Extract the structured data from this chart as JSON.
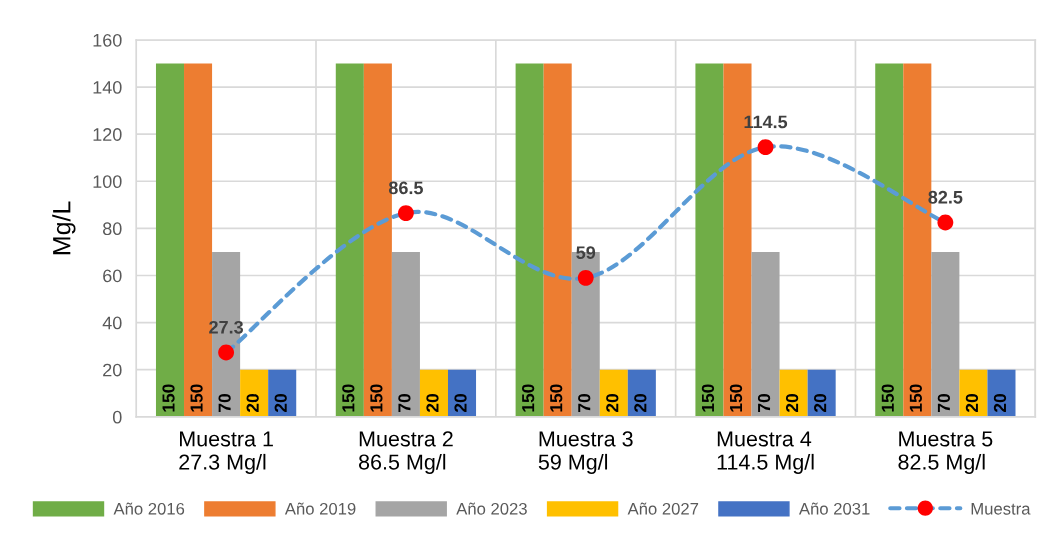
{
  "chart_data": {
    "type": "bar",
    "ylabel": "Mg/L",
    "categories": [
      "Muestra 1\n27.3 Mg/l",
      "Muestra 2\n86.5 Mg/l",
      "Muestra 3\n59 Mg/l",
      "Muestra 4\n114.5 Mg/l",
      "Muestra 5\n82.5 Mg/l"
    ],
    "series": [
      {
        "name": "Año 2016",
        "color": "#70ad47",
        "values": [
          150,
          150,
          150,
          150,
          150
        ]
      },
      {
        "name": "Año 2019",
        "color": "#ed7d31",
        "values": [
          150,
          150,
          150,
          150,
          150
        ]
      },
      {
        "name": "Año 2023",
        "color": "#a5a5a5",
        "values": [
          70,
          70,
          70,
          70,
          70
        ]
      },
      {
        "name": "Año 2027",
        "color": "#ffc000",
        "values": [
          20,
          20,
          20,
          20,
          20
        ]
      },
      {
        "name": "Año 2031",
        "color": "#4472c4",
        "values": [
          20,
          20,
          20,
          20,
          20
        ]
      },
      {
        "name": "Muestra",
        "type": "line",
        "color": "#5b9bd5",
        "colors": [
          "#ff0000",
          "#ff0000",
          "#ff0000",
          "#ff0000",
          "#ff0000"
        ],
        "values": [
          27.3,
          86.5,
          59,
          114.5,
          82.5
        ],
        "marker": "circle",
        "line_style": "dashed"
      }
    ],
    "ylim": [
      0,
      160
    ],
    "yticks": [
      0,
      20,
      40,
      60,
      80,
      100,
      120,
      140,
      160
    ],
    "grid": true,
    "legend": "bottom",
    "data_labels": true
  }
}
